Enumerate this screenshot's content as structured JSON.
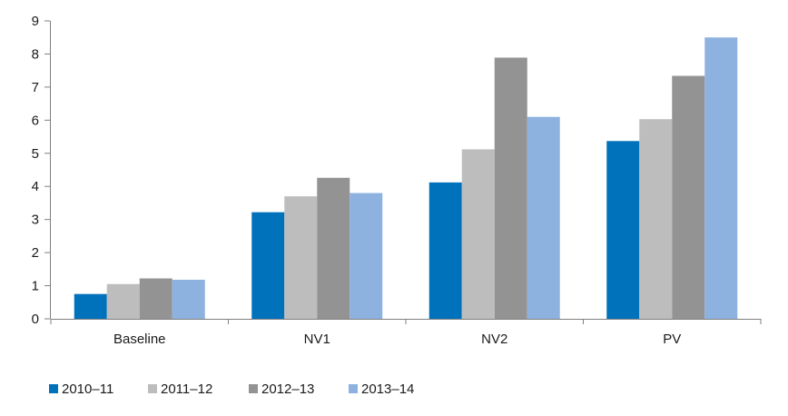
{
  "chart_data": {
    "type": "bar",
    "title": "",
    "xlabel": "",
    "ylabel": "",
    "ylim": [
      0,
      9
    ],
    "yticks": [
      0,
      1,
      2,
      3,
      4,
      5,
      6,
      7,
      8,
      9
    ],
    "grid": false,
    "legend_position": "bottom-left",
    "categories": [
      "Baseline",
      "NV1",
      "NV2",
      "PV"
    ],
    "series": [
      {
        "name": "2010–11",
        "color": "#0072bc",
        "values": [
          0.75,
          3.22,
          4.12,
          5.37
        ]
      },
      {
        "name": "2011–12",
        "color": "#bdbdbd",
        "values": [
          1.05,
          3.7,
          5.12,
          6.03
        ]
      },
      {
        "name": "2012–13",
        "color": "#939393",
        "values": [
          1.22,
          4.26,
          7.89,
          7.34
        ]
      },
      {
        "name": "2013–14",
        "color": "#8db2df",
        "values": [
          1.18,
          3.8,
          6.1,
          8.5
        ]
      }
    ]
  }
}
